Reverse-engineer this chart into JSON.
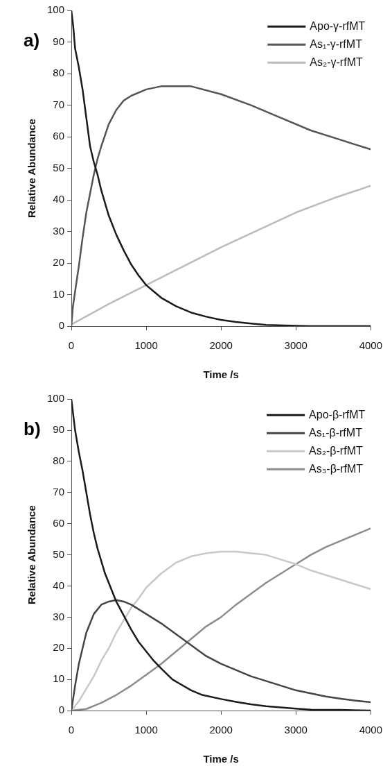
{
  "chart_data": [
    {
      "type": "line",
      "title": "a)",
      "xlabel": "Time /s",
      "ylabel": "Relative Abundance",
      "xlim": [
        0,
        4000
      ],
      "xticks": [
        0,
        1000,
        2000,
        3000,
        4000
      ],
      "ylim": [
        0,
        100
      ],
      "yticks": [
        0,
        10,
        20,
        30,
        40,
        50,
        60,
        70,
        80,
        90,
        100
      ],
      "grid": false,
      "legend": "top right",
      "marker": "none",
      "line_style": "solid",
      "series": [
        {
          "name": "Apo-γ-rfMT",
          "color": "#1a1a1a",
          "x": [
            0,
            25,
            50,
            100,
            150,
            200,
            250,
            300,
            350,
            400,
            500,
            600,
            700,
            800,
            900,
            1000,
            1100,
            1200,
            1400,
            1600,
            1800,
            2000,
            2200,
            2400,
            2600,
            3000,
            3200,
            4000
          ],
          "values": [
            100,
            95,
            88,
            82,
            75,
            66,
            57,
            52,
            48,
            43,
            35,
            29,
            24,
            19.5,
            16,
            13,
            11,
            9,
            6.3,
            4.3,
            3,
            2,
            1.3,
            0.8,
            0.4,
            0.1,
            0,
            0
          ]
        },
        {
          "name": "As₁-γ-rfMT",
          "color": "#555555",
          "x": [
            0,
            20,
            50,
            100,
            150,
            200,
            250,
            300,
            350,
            400,
            500,
            600,
            700,
            800,
            1000,
            1200,
            1600,
            2000,
            2400,
            2800,
            3200,
            3600,
            4000
          ],
          "values": [
            0,
            6,
            11,
            19,
            28,
            36,
            42,
            48,
            53,
            57,
            64,
            68.5,
            71.5,
            73,
            75,
            76,
            76,
            73.5,
            70,
            66,
            62,
            59,
            56
          ]
        },
        {
          "name": "As₂-γ-rfMT",
          "color": "#bbbbbb",
          "x": [
            0,
            500,
            1000,
            1500,
            2000,
            2500,
            3000,
            3500,
            4000
          ],
          "values": [
            0.5,
            7,
            13,
            19,
            25,
            30.5,
            36,
            40.5,
            44.5
          ]
        }
      ]
    },
    {
      "type": "line",
      "title": "b)",
      "xlabel": "Time /s",
      "ylabel": "Relative Abundance",
      "xlim": [
        0,
        4000
      ],
      "xticks": [
        0,
        1000,
        2000,
        3000,
        4000
      ],
      "ylim": [
        0,
        100
      ],
      "yticks": [
        0,
        10,
        20,
        30,
        40,
        50,
        60,
        70,
        80,
        90,
        100
      ],
      "grid": false,
      "legend": "top right",
      "marker": "none",
      "line_style": "solid",
      "series": [
        {
          "name": "Apo-β-rfMT",
          "color": "#1a1a1a",
          "x": [
            0,
            50,
            100,
            150,
            200,
            250,
            300,
            350,
            400,
            450,
            500,
            600,
            700,
            800,
            900,
            1000,
            1100,
            1200,
            1350,
            1600,
            1750,
            2000,
            2200,
            2400,
            2600,
            2800,
            3000,
            3200,
            3600,
            4000
          ],
          "values": [
            100,
            90,
            83,
            77,
            70,
            63,
            57,
            52,
            48,
            44,
            41,
            35,
            30.5,
            26,
            22,
            19,
            16,
            13.5,
            10,
            6.5,
            5,
            3.7,
            2.8,
            2,
            1.4,
            1,
            0.6,
            0.3,
            0.2,
            0
          ]
        },
        {
          "name": "As₁-β-rfMT",
          "color": "#444444",
          "x": [
            0,
            50,
            100,
            150,
            200,
            300,
            400,
            500,
            600,
            700,
            800,
            1000,
            1200,
            1400,
            1600,
            1800,
            2000,
            2200,
            2400,
            2600,
            2800,
            3000,
            3200,
            3400,
            3600,
            3800,
            4000
          ],
          "values": [
            0,
            8,
            15,
            20,
            25,
            31,
            34,
            35,
            35.5,
            35,
            34,
            31,
            28,
            24.5,
            21,
            17.5,
            15,
            13,
            11,
            9.5,
            8,
            6.5,
            5.5,
            4.5,
            3.8,
            3.2,
            2.7
          ]
        },
        {
          "name": "As₂-β-rfMT",
          "color": "#c8c8c8",
          "x": [
            0,
            100,
            200,
            300,
            400,
            500,
            600,
            700,
            800,
            900,
            1000,
            1200,
            1400,
            1600,
            1800,
            2000,
            2200,
            2400,
            2600,
            2800,
            3000,
            3200,
            3400,
            3600,
            3800,
            4000
          ],
          "values": [
            0,
            3,
            7,
            11,
            16,
            20,
            25,
            29,
            33,
            36,
            39.5,
            44,
            47.5,
            49.5,
            50.5,
            51,
            51,
            50.5,
            50,
            48.5,
            47,
            45,
            43.5,
            42,
            40.5,
            39
          ]
        },
        {
          "name": "As₃-β-rfMT",
          "color": "#8c8c8c",
          "x": [
            0,
            200,
            400,
            600,
            800,
            1000,
            1200,
            1400,
            1600,
            1800,
            2000,
            2200,
            2400,
            2600,
            2800,
            3000,
            3200,
            3400,
            3600,
            3800,
            4000
          ],
          "values": [
            0,
            0.5,
            2.5,
            5,
            8,
            11.5,
            15,
            19,
            23,
            27,
            30,
            34,
            37.5,
            41,
            44,
            47,
            50,
            52.5,
            54.5,
            56.5,
            58.5
          ]
        }
      ]
    }
  ]
}
